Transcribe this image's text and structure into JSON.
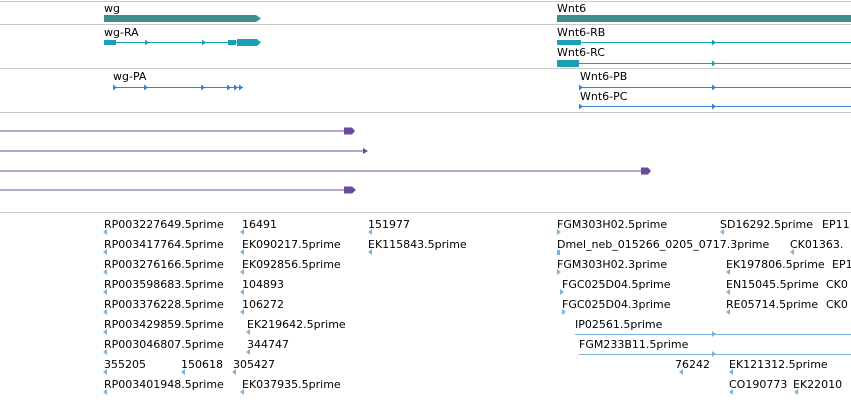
{
  "colors": {
    "gene": "#3d8f8f",
    "transcript_rna": "#1aa0b4",
    "transcript_protein": "#3a7fd0",
    "alignment": "#6a4c9c",
    "est": "#7ab4dc",
    "separator": "#c8c8c8"
  },
  "genes": [
    {
      "name": "wg"
    },
    {
      "name": "Wnt6"
    }
  ],
  "transcripts": [
    {
      "name": "wg-RA"
    },
    {
      "name": "Wnt6-RB"
    },
    {
      "name": "Wnt6-RC"
    }
  ],
  "proteins": [
    {
      "name": "wg-PA"
    },
    {
      "name": "Wnt6-PB"
    },
    {
      "name": "Wnt6-PC"
    }
  ],
  "est_labels": [
    "RP003227649.5prime",
    "16491",
    "151977",
    "FGM303H02.5prime",
    "SD16292.5prime",
    "EP11",
    "RP003417764.5prime",
    "EK090217.5prime",
    "EK115843.5prime",
    "Dmel_neb_015266_0205_0717.3prime",
    "CK01363.",
    "RP003276166.5prime",
    "EK092856.5prime",
    "FGM303H02.3prime",
    "EK197806.5prime",
    "EP1",
    "RP003598683.5prime",
    "104893",
    "FGC025D04.5prime",
    "EN15045.5prime",
    "CK0",
    "RP003376228.5prime",
    "106272",
    "FGC025D04.3prime",
    "RE05714.5prime",
    "CK0",
    "RP003429859.5prime",
    "EK219642.5prime",
    "IP02561.5prime",
    "RP003046807.5prime",
    "344747",
    "FGM233B11.5prime",
    "355205",
    "150618",
    "305427",
    "76242",
    "EK121312.5prime",
    "RP003401948.5prime",
    "EK037935.5prime",
    "CO190773",
    "EK22010"
  ]
}
